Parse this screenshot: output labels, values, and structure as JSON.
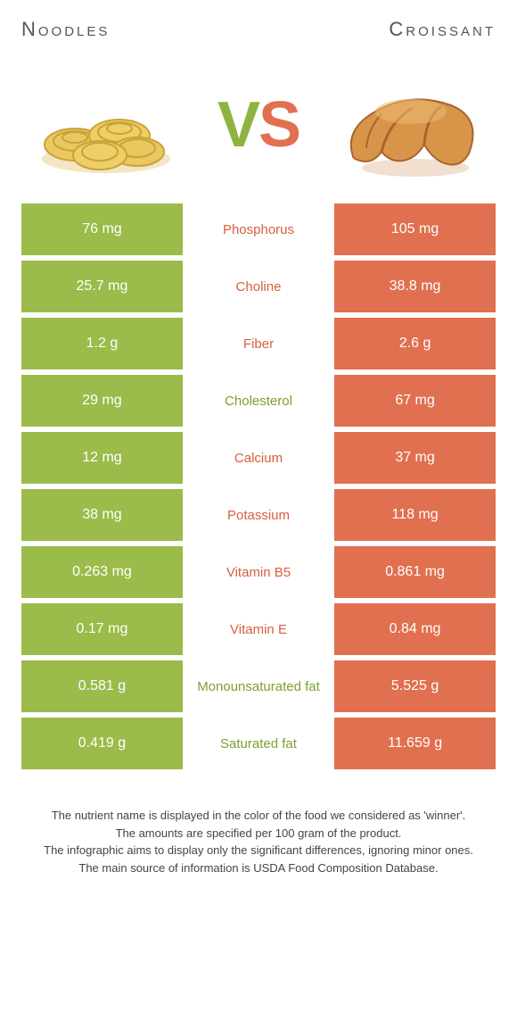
{
  "header": {
    "left_title": "Noodles",
    "right_title": "Croissant",
    "vs_v": "V",
    "vs_s": "S"
  },
  "colors": {
    "left_bg": "#9bbb4a",
    "right_bg": "#e0704f",
    "green_text": "#7ca02f",
    "orange_text": "#d85f3e",
    "page_bg": "#ffffff"
  },
  "rows": [
    {
      "left": "76 mg",
      "label": "Phosphorus",
      "right": "105 mg",
      "winner": "orange"
    },
    {
      "left": "25.7 mg",
      "label": "Choline",
      "right": "38.8 mg",
      "winner": "orange"
    },
    {
      "left": "1.2 g",
      "label": "Fiber",
      "right": "2.6 g",
      "winner": "orange"
    },
    {
      "left": "29 mg",
      "label": "Cholesterol",
      "right": "67 mg",
      "winner": "green"
    },
    {
      "left": "12 mg",
      "label": "Calcium",
      "right": "37 mg",
      "winner": "orange"
    },
    {
      "left": "38 mg",
      "label": "Potassium",
      "right": "118 mg",
      "winner": "orange"
    },
    {
      "left": "0.263 mg",
      "label": "Vitamin B5",
      "right": "0.861 mg",
      "winner": "orange"
    },
    {
      "left": "0.17 mg",
      "label": "Vitamin E",
      "right": "0.84 mg",
      "winner": "orange"
    },
    {
      "left": "0.581 g",
      "label": "Monounsaturated fat",
      "right": "5.525 g",
      "winner": "green"
    },
    {
      "left": "0.419 g",
      "label": "Saturated fat",
      "right": "11.659 g",
      "winner": "green"
    }
  ],
  "footer": {
    "line1": "The nutrient name is displayed in the color of the food we considered as 'winner'.",
    "line2": "The amounts are specified per 100 gram of the product.",
    "line3": "The infographic aims to display only the significant differences, ignoring minor ones.",
    "line4": "The main source of information is USDA Food Composition Database."
  }
}
